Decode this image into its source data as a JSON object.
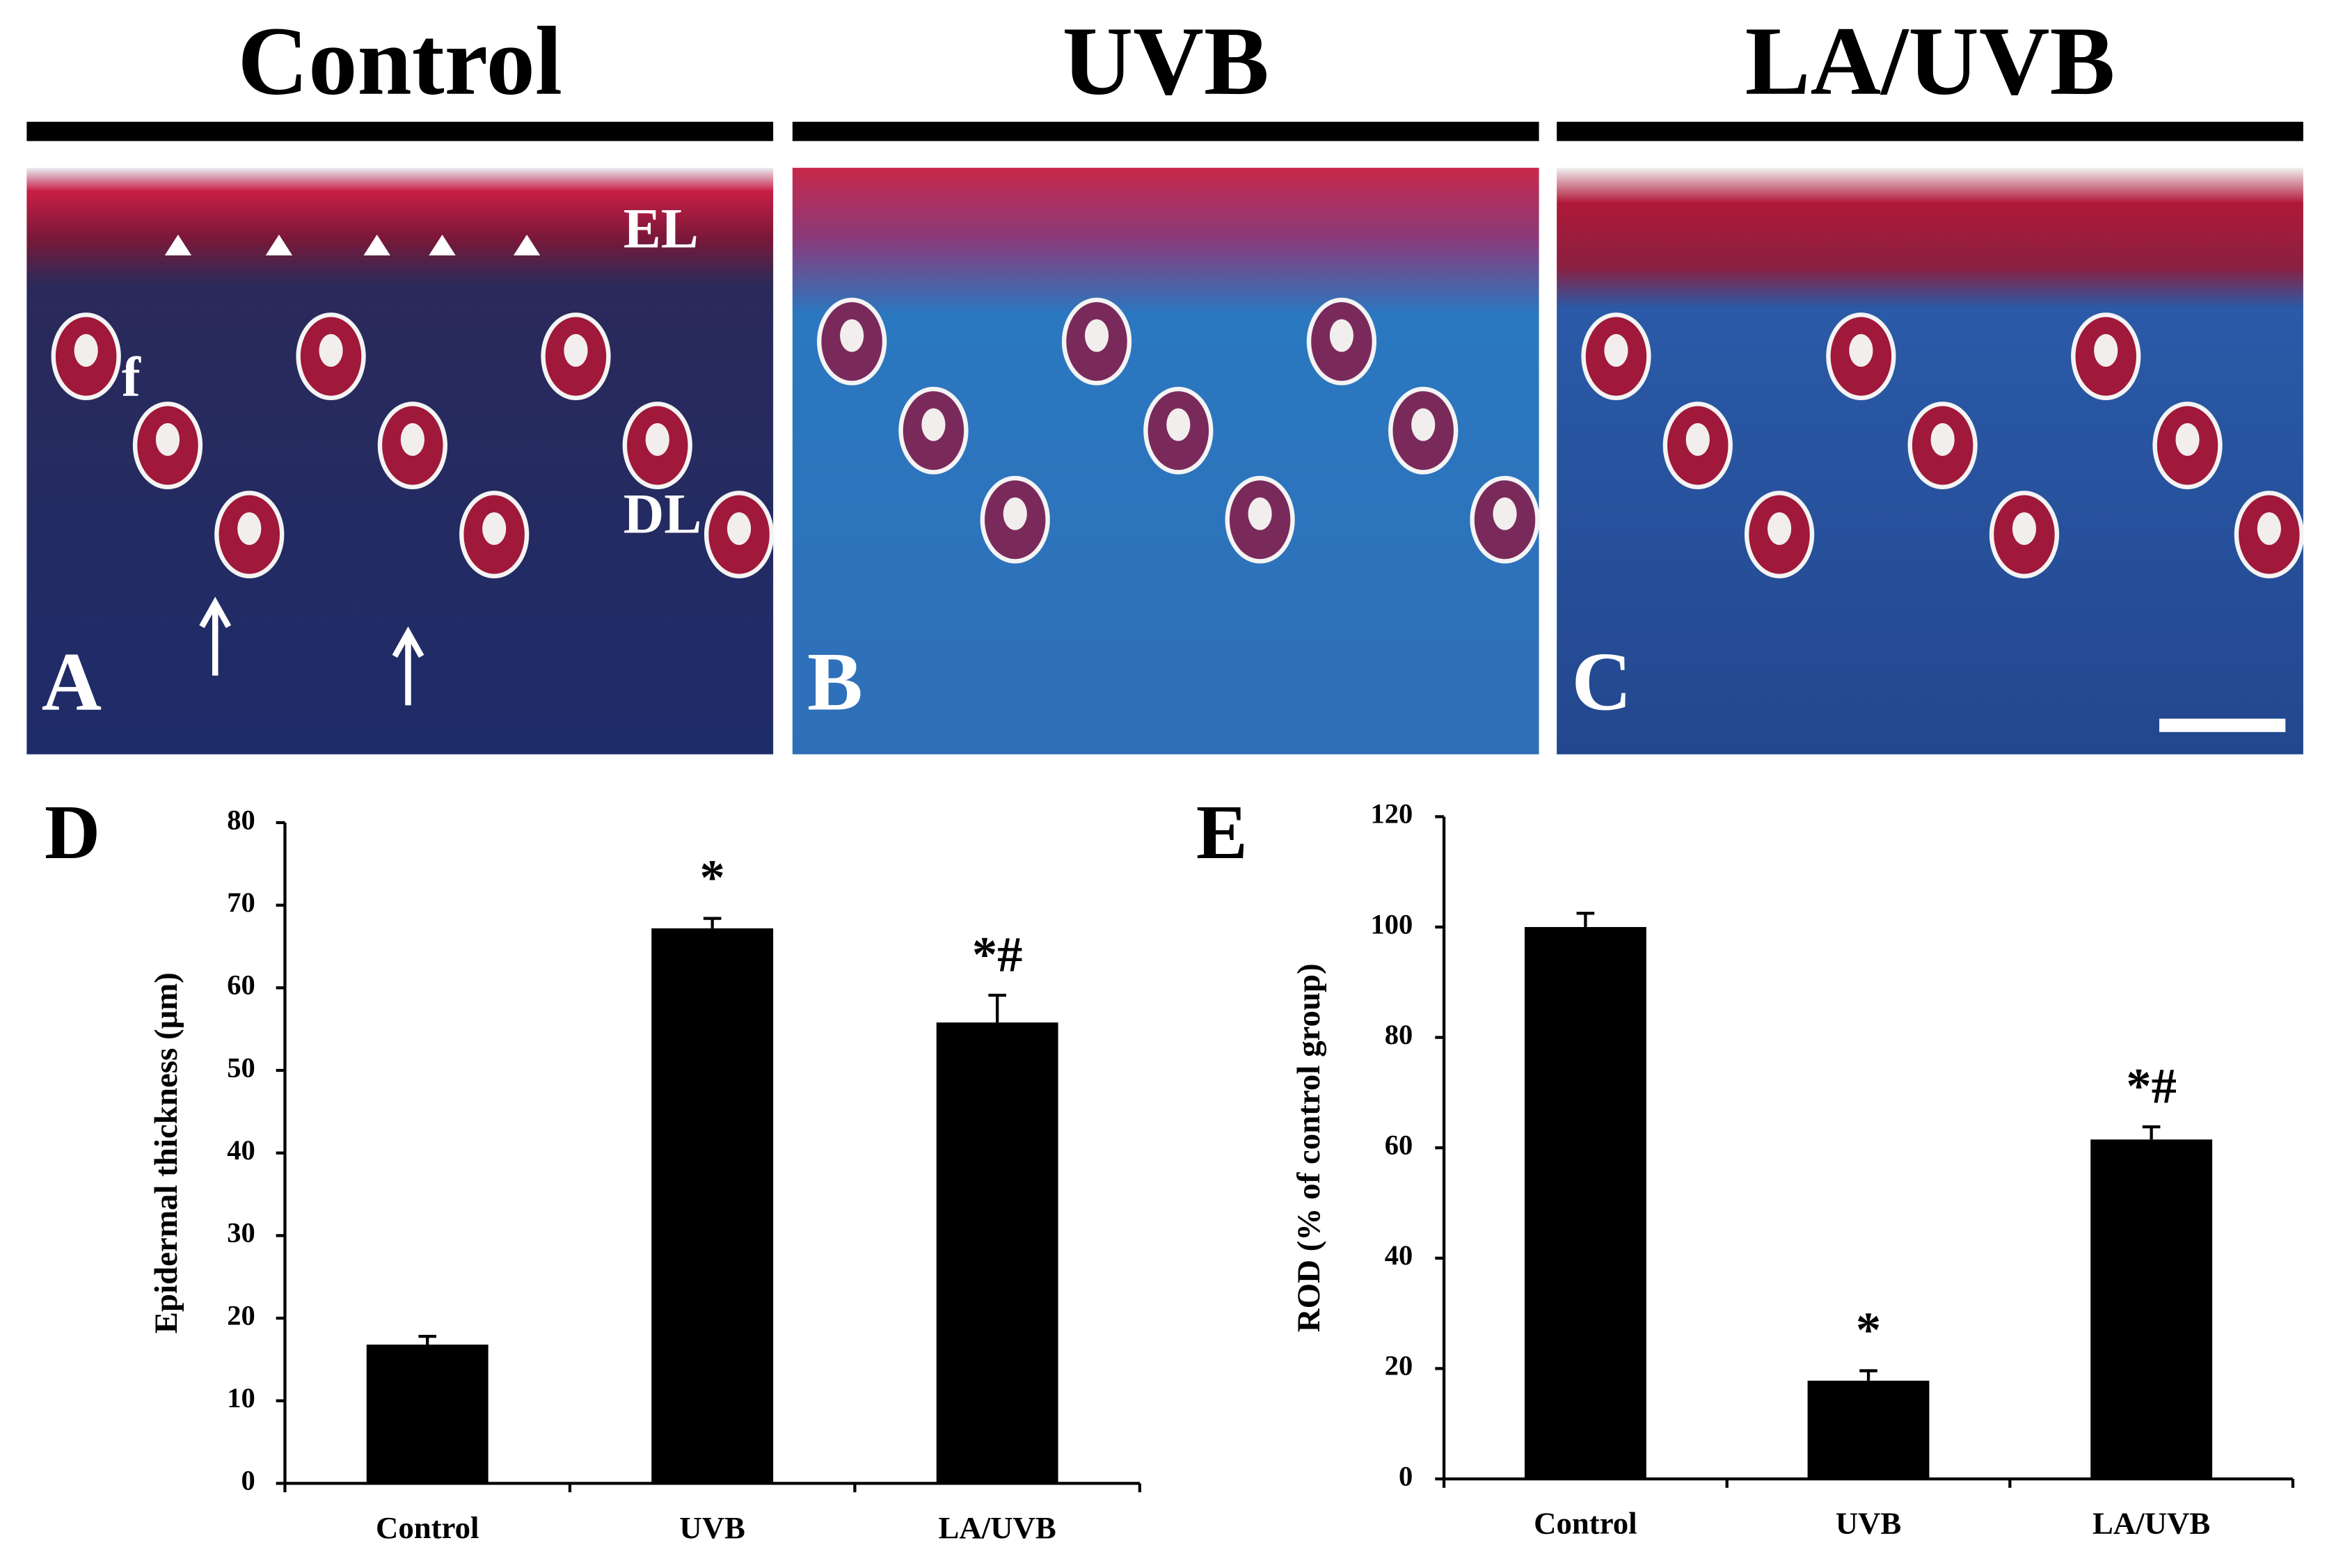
{
  "panels": [
    {
      "title": "Control",
      "letter": "A",
      "labels": [
        "EL",
        "f",
        "DL"
      ]
    },
    {
      "title": "UVB",
      "letter": "B",
      "labels": []
    },
    {
      "title": "LA/UVB",
      "letter": "C",
      "labels": []
    }
  ],
  "chart_data": [
    {
      "type": "bar",
      "letter": "D",
      "y_label": "Epidermal thickness (μm)",
      "categories": [
        "Control",
        "UVB",
        "LA/UVB"
      ],
      "values": [
        16.8,
        67.2,
        55.8
      ],
      "errors": [
        1.0,
        1.2,
        3.3
      ],
      "annotations": [
        null,
        "*",
        "*#"
      ],
      "color": "#000000",
      "ylim": [
        0,
        80
      ],
      "yticks": [
        0,
        10,
        20,
        30,
        40,
        50,
        60,
        70,
        80
      ]
    },
    {
      "type": "bar",
      "letter": "E",
      "y_label": "ROD (% of control group)",
      "categories": [
        "Control",
        "UVB",
        "LA/UVB"
      ],
      "values": [
        100,
        17.8,
        61.5
      ],
      "errors": [
        2.5,
        1.8,
        2.3
      ],
      "annotations": [
        null,
        "*",
        "*#"
      ],
      "color": "#000000",
      "ylim": [
        0,
        120
      ],
      "yticks": [
        0,
        20,
        40,
        60,
        80,
        100,
        120
      ]
    }
  ]
}
